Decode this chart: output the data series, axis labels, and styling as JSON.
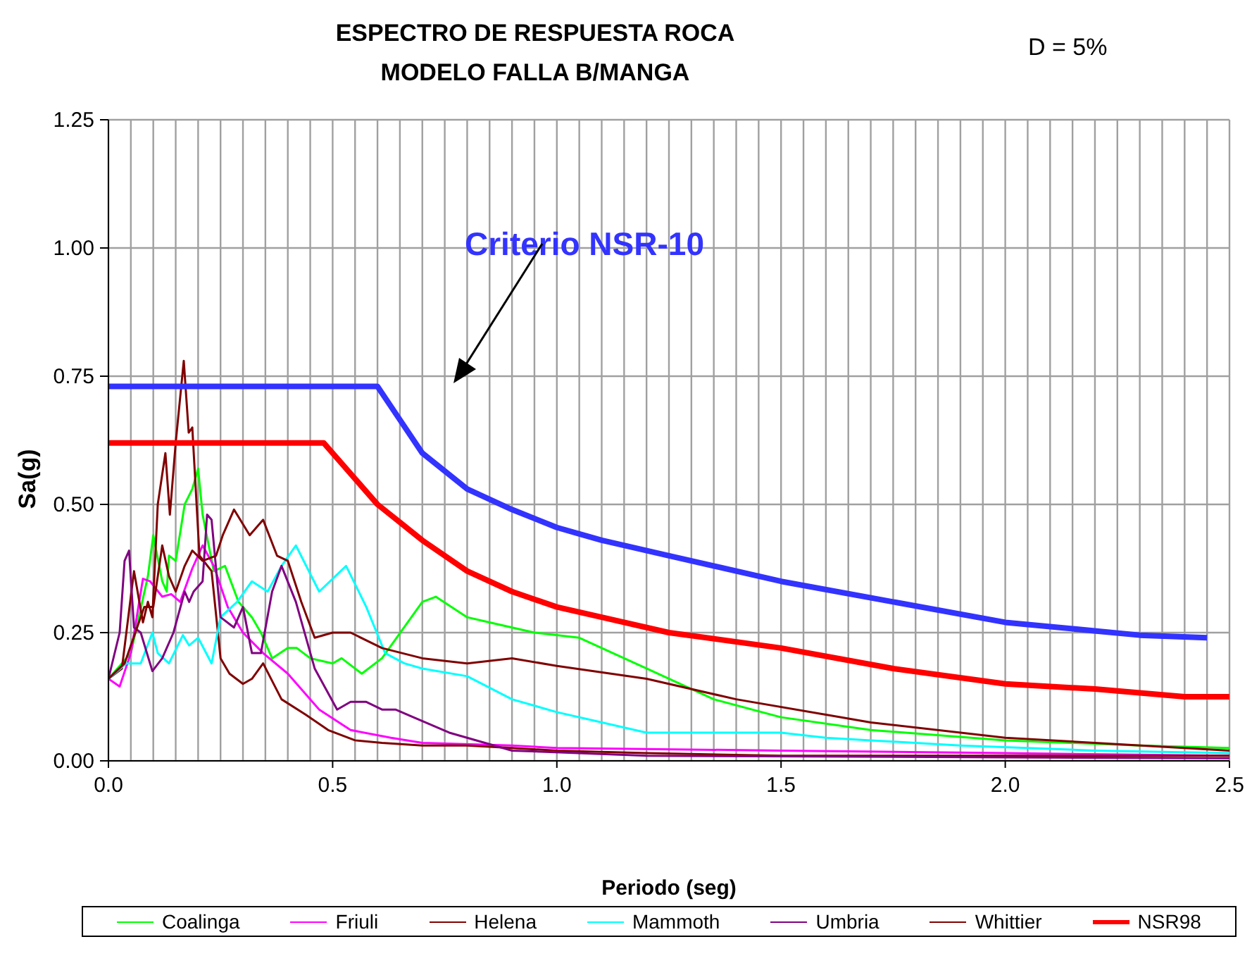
{
  "chart_data": {
    "type": "line",
    "title": "ESPECTRO DE RESPUESTA ROCA\nMODELO FALLA B/MANGA",
    "xlabel": "Periodo (seg)",
    "ylabel": "Sa(g)",
    "annotations": [
      "D = 5%"
    ],
    "xlim": [
      0,
      2.5
    ],
    "ylim": [
      0,
      1.25
    ],
    "xticks": [
      {
        "value": 0,
        "label": "0.0"
      },
      {
        "value": 0.05,
        "label": null
      },
      {
        "value": 0.1,
        "label": null
      },
      {
        "value": 0.15,
        "label": null
      },
      {
        "value": 0.2,
        "label": null
      },
      {
        "value": 0.25,
        "label": null
      },
      {
        "value": 0.3,
        "label": null
      },
      {
        "value": 0.35,
        "label": null
      },
      {
        "value": 0.4,
        "label": null
      },
      {
        "value": 0.45,
        "label": null
      },
      0.5,
      {
        "value": 0.55,
        "label": null
      },
      {
        "value": 0.6,
        "label": null
      },
      {
        "value": 0.65,
        "label": null
      },
      {
        "value": 0.7,
        "label": null
      },
      {
        "value": 0.75,
        "label": null
      },
      {
        "value": 0.8,
        "label": null
      },
      {
        "value": 0.85,
        "label": null
      },
      {
        "value": 0.9,
        "label": null
      },
      {
        "value": 0.95,
        "label": null
      },
      {
        "value": 1,
        "label": "1.0"
      },
      {
        "value": 1.05,
        "label": null
      },
      {
        "value": 1.1,
        "label": null
      },
      {
        "value": 1.15,
        "label": null
      },
      {
        "value": 1.2,
        "label": null
      },
      {
        "value": 1.25,
        "label": null
      },
      {
        "value": 1.3,
        "label": null
      },
      {
        "value": 1.35,
        "label": null
      },
      {
        "value": 1.4,
        "label": null
      },
      {
        "value": 1.45,
        "label": null
      },
      1.5,
      {
        "value": 1.55,
        "label": null
      },
      {
        "value": 1.6,
        "label": null
      },
      {
        "value": 1.65,
        "label": null
      },
      {
        "value": 1.7,
        "label": null
      },
      {
        "value": 1.75,
        "label": null
      },
      {
        "value": 1.8,
        "label": null
      },
      {
        "value": 1.85,
        "label": null
      },
      {
        "value": 1.9,
        "label": null
      },
      {
        "value": 1.95,
        "label": null
      },
      {
        "value": 2,
        "label": "2.0"
      },
      {
        "value": 2.05,
        "label": null
      },
      {
        "value": 2.1,
        "label": null
      },
      {
        "value": 2.15,
        "label": null
      },
      {
        "value": 2.2,
        "label": null
      },
      {
        "value": 2.25,
        "label": null
      },
      {
        "value": 2.3,
        "label": null
      },
      {
        "value": 2.35,
        "label": null
      },
      {
        "value": 2.4,
        "label": null
      },
      {
        "value": 2.45,
        "label": null
      },
      2.5
    ],
    "yticks": [
      {
        "value": 0,
        "label": "0.00"
      },
      0.25,
      {
        "value": 0.5,
        "label": "0.50"
      },
      0.75,
      {
        "value": 1,
        "label": "1.00"
      },
      1.25
    ],
    "grid": true,
    "legend": "bottom",
    "marker": "none",
    "line_style": "solid",
    "series": [
      {
        "name": "Coalinga",
        "color": "#00ff00",
        "x": [
          0,
          0.05,
          0.088,
          0.1,
          0.12,
          0.13,
          0.135,
          0.15,
          0.17,
          0.187,
          0.2,
          0.21,
          0.235,
          0.26,
          0.29,
          0.32,
          0.34,
          0.365,
          0.4,
          0.42,
          0.45,
          0.5,
          0.52,
          0.565,
          0.61,
          0.7,
          0.73,
          0.8,
          0.85,
          0.95,
          1.05,
          1.2,
          1.35,
          1.5,
          1.7,
          2.0,
          2.3,
          2.5
        ],
        "values": [
          0.16,
          0.21,
          0.36,
          0.44,
          0.35,
          0.33,
          0.4,
          0.39,
          0.5,
          0.53,
          0.57,
          0.48,
          0.37,
          0.38,
          0.31,
          0.28,
          0.25,
          0.2,
          0.22,
          0.22,
          0.2,
          0.19,
          0.2,
          0.17,
          0.2,
          0.31,
          0.32,
          0.28,
          0.27,
          0.25,
          0.24,
          0.18,
          0.12,
          0.085,
          0.06,
          0.04,
          0.03,
          0.025
        ]
      },
      {
        "name": "Friuli",
        "color": "#ff00ff",
        "x": [
          0,
          0.025,
          0.05,
          0.077,
          0.093,
          0.12,
          0.14,
          0.16,
          0.187,
          0.21,
          0.235,
          0.266,
          0.3,
          0.345,
          0.4,
          0.47,
          0.54,
          0.63,
          0.7,
          0.9,
          1.0,
          1.5,
          2.0,
          2.5
        ],
        "values": [
          0.16,
          0.145,
          0.21,
          0.355,
          0.35,
          0.32,
          0.325,
          0.31,
          0.375,
          0.42,
          0.38,
          0.3,
          0.25,
          0.21,
          0.17,
          0.1,
          0.06,
          0.045,
          0.035,
          0.03,
          0.025,
          0.02,
          0.015,
          0.01
        ]
      },
      {
        "name": "Helena",
        "color": "#800000",
        "x": [
          0,
          0.03,
          0.057,
          0.077,
          0.088,
          0.098,
          0.11,
          0.127,
          0.137,
          0.15,
          0.168,
          0.179,
          0.187,
          0.203,
          0.23,
          0.25,
          0.27,
          0.3,
          0.32,
          0.345,
          0.386,
          0.44,
          0.49,
          0.55,
          0.61,
          0.7,
          0.8,
          0.9,
          1.0,
          1.2,
          1.5,
          2.0,
          2.5
        ],
        "values": [
          0.16,
          0.18,
          0.37,
          0.27,
          0.31,
          0.28,
          0.5,
          0.6,
          0.48,
          0.62,
          0.78,
          0.64,
          0.65,
          0.4,
          0.37,
          0.2,
          0.17,
          0.15,
          0.16,
          0.19,
          0.12,
          0.09,
          0.06,
          0.04,
          0.035,
          0.03,
          0.03,
          0.025,
          0.02,
          0.015,
          0.01,
          0.01,
          0.01
        ]
      },
      {
        "name": "Mammoth",
        "color": "#00ffff",
        "x": [
          0,
          0.04,
          0.072,
          0.098,
          0.11,
          0.135,
          0.166,
          0.18,
          0.2,
          0.23,
          0.25,
          0.287,
          0.32,
          0.355,
          0.386,
          0.418,
          0.47,
          0.53,
          0.575,
          0.617,
          0.66,
          0.7,
          0.8,
          0.9,
          1.0,
          1.2,
          1.5,
          1.6,
          1.7,
          1.9,
          2.2,
          2.5
        ],
        "values": [
          0.16,
          0.19,
          0.19,
          0.25,
          0.21,
          0.19,
          0.245,
          0.225,
          0.24,
          0.19,
          0.28,
          0.31,
          0.35,
          0.33,
          0.38,
          0.42,
          0.33,
          0.38,
          0.3,
          0.21,
          0.19,
          0.18,
          0.165,
          0.12,
          0.095,
          0.055,
          0.055,
          0.045,
          0.04,
          0.03,
          0.02,
          0.015
        ]
      },
      {
        "name": "Umbria",
        "color": "#800080",
        "x": [
          0,
          0.025,
          0.036,
          0.046,
          0.057,
          0.072,
          0.098,
          0.12,
          0.145,
          0.17,
          0.18,
          0.19,
          0.21,
          0.22,
          0.23,
          0.25,
          0.28,
          0.3,
          0.32,
          0.34,
          0.365,
          0.386,
          0.418,
          0.46,
          0.51,
          0.54,
          0.575,
          0.61,
          0.64,
          0.76,
          0.9,
          1.2,
          2.5
        ],
        "values": [
          0.16,
          0.25,
          0.39,
          0.41,
          0.26,
          0.25,
          0.175,
          0.2,
          0.25,
          0.33,
          0.31,
          0.33,
          0.35,
          0.48,
          0.47,
          0.28,
          0.26,
          0.3,
          0.21,
          0.21,
          0.33,
          0.38,
          0.31,
          0.18,
          0.1,
          0.115,
          0.115,
          0.1,
          0.1,
          0.055,
          0.02,
          0.01,
          0.005
        ]
      },
      {
        "name": "Whittier",
        "color": "#800000",
        "x": [
          0,
          0.036,
          0.06,
          0.08,
          0.1,
          0.12,
          0.135,
          0.15,
          0.17,
          0.187,
          0.21,
          0.24,
          0.255,
          0.28,
          0.315,
          0.345,
          0.376,
          0.4,
          0.43,
          0.46,
          0.5,
          0.54,
          0.61,
          0.7,
          0.8,
          0.9,
          1.0,
          1.2,
          1.4,
          1.6,
          1.7,
          2.0,
          2.2,
          2.5
        ],
        "values": [
          0.16,
          0.19,
          0.25,
          0.3,
          0.3,
          0.42,
          0.36,
          0.33,
          0.38,
          0.41,
          0.39,
          0.4,
          0.44,
          0.49,
          0.44,
          0.47,
          0.4,
          0.39,
          0.31,
          0.24,
          0.25,
          0.25,
          0.22,
          0.2,
          0.19,
          0.2,
          0.185,
          0.16,
          0.12,
          0.09,
          0.075,
          0.045,
          0.035,
          0.02
        ]
      },
      {
        "name": "NSR98",
        "color": "#ff0000",
        "x": [
          0,
          0.48,
          0.55,
          0.6,
          0.65,
          0.7,
          0.8,
          0.9,
          1.0,
          1.1,
          1.25,
          1.5,
          1.75,
          2.0,
          2.2,
          2.4,
          2.5
        ],
        "values": [
          0.62,
          0.62,
          0.55,
          0.5,
          0.465,
          0.43,
          0.37,
          0.33,
          0.3,
          0.28,
          0.25,
          0.22,
          0.18,
          0.15,
          0.14,
          0.125,
          0.125
        ]
      },
      {
        "name": "Criterio NSR-10",
        "color": "#3333ff",
        "x": [
          0,
          0.6,
          0.65,
          0.7,
          0.75,
          0.8,
          0.9,
          1.0,
          1.1,
          1.25,
          1.5,
          1.75,
          2.0,
          2.3,
          2.45
        ],
        "values": [
          0.73,
          0.73,
          0.665,
          0.6,
          0.565,
          0.53,
          0.49,
          0.455,
          0.43,
          0.4,
          0.35,
          0.31,
          0.27,
          0.245,
          0.24
        ]
      }
    ]
  }
}
